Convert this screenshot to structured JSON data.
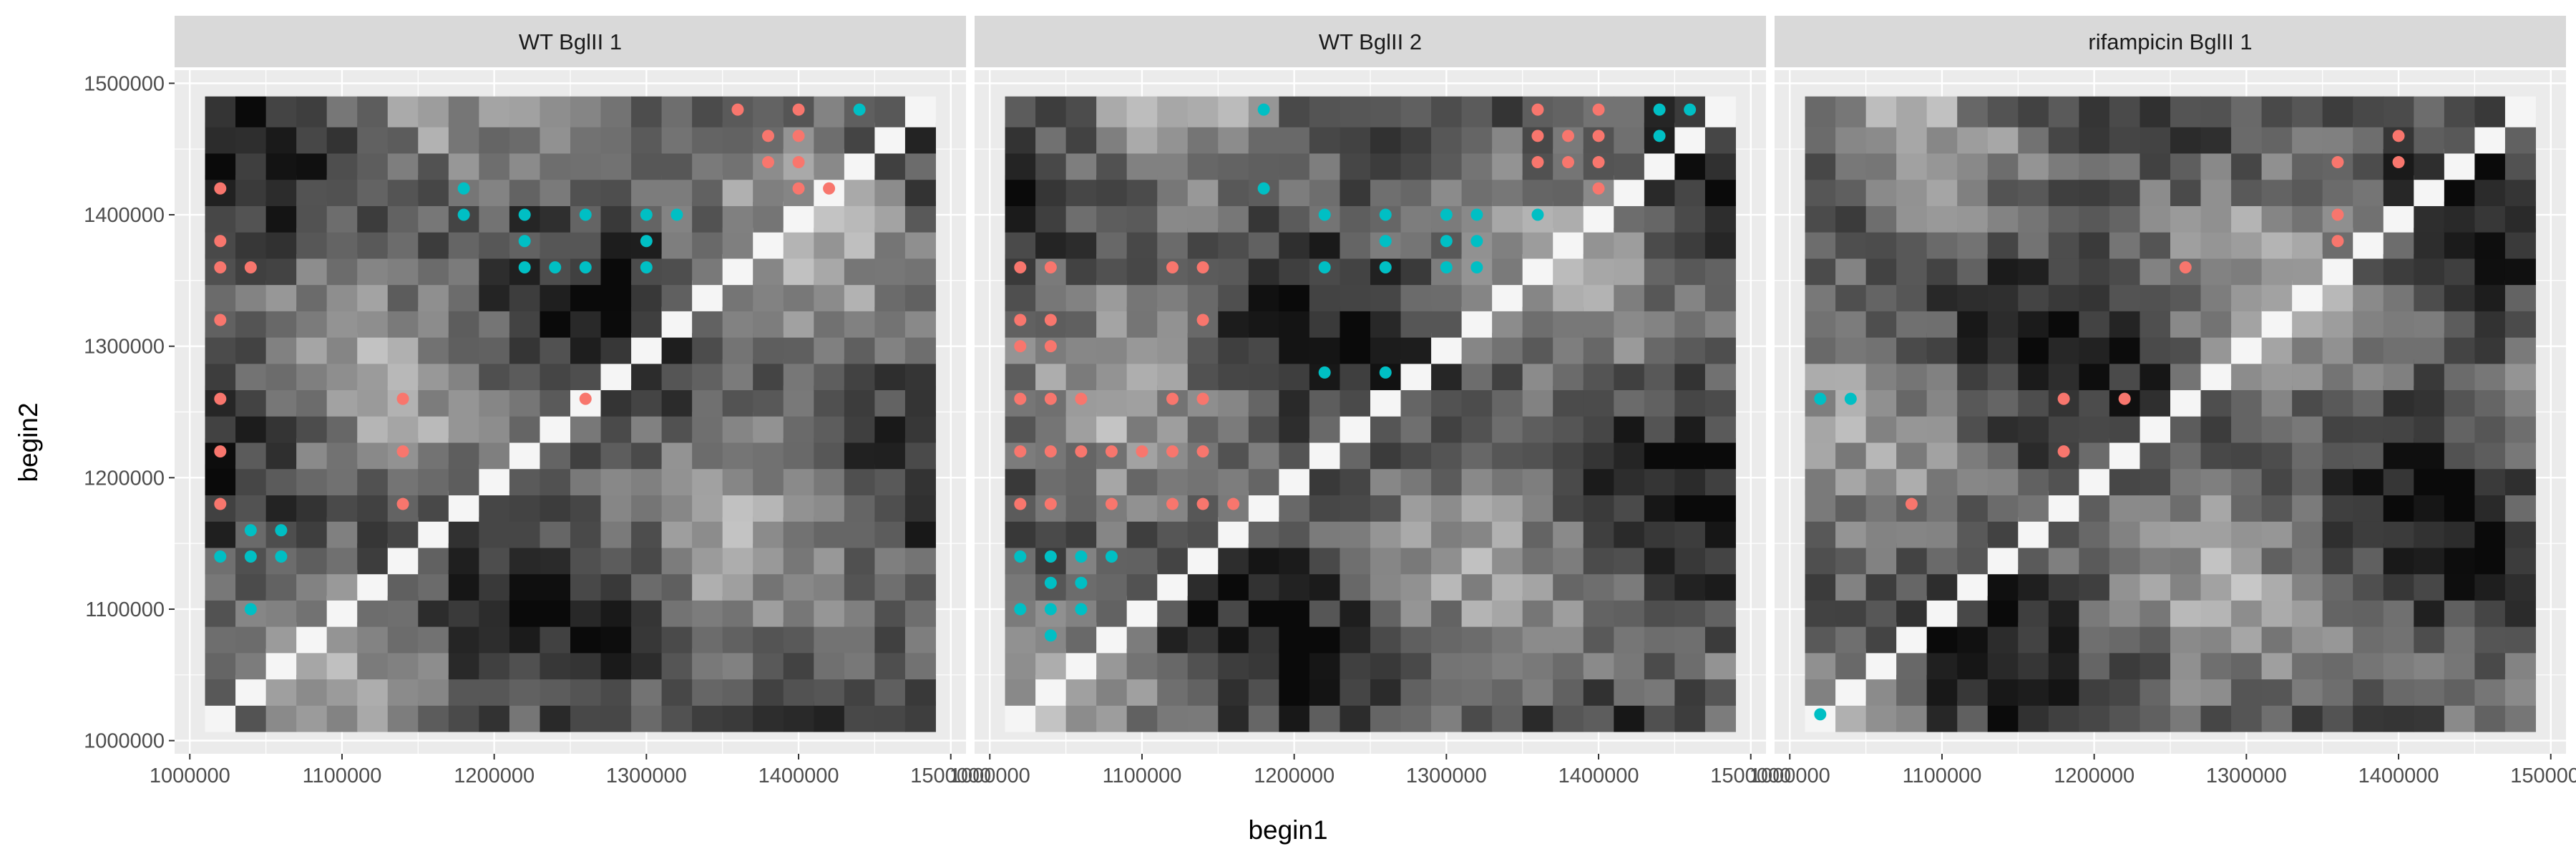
{
  "chart_data": {
    "type": "heatmap",
    "title": "",
    "xlabel": "begin1",
    "ylabel": "begin2",
    "xlim": [
      990000,
      1510000
    ],
    "ylim": [
      990000,
      1510000
    ],
    "x_ticks": [
      1000000,
      1100000,
      1200000,
      1300000,
      1400000,
      1500000
    ],
    "y_ticks": [
      1000000,
      1100000,
      1200000,
      1300000,
      1400000,
      1500000
    ],
    "x_tick_labels": [
      "1000000",
      "1100000",
      "1200000",
      "1300000",
      "1400000",
      "1500000"
    ],
    "y_tick_labels": [
      "1000000",
      "1100000",
      "1200000",
      "1300000",
      "1400000",
      "1500000"
    ],
    "grid": true,
    "legend": "none",
    "bin_size": 20000,
    "bin_start": 1020000,
    "bin_count": 24,
    "colors": {
      "panel_bg": "#ebebeb",
      "grid_line": "#ffffff",
      "strip_bg": "#d9d9d9",
      "point_red": "#f8766d",
      "point_cyan": "#00bfc4"
    },
    "panels": [
      {
        "name": "WT BglII 1",
        "seed": 11,
        "red_points": [
          [
            1020000,
            1420000
          ],
          [
            1020000,
            1380000
          ],
          [
            1020000,
            1360000
          ],
          [
            1040000,
            1360000
          ],
          [
            1020000,
            1320000
          ],
          [
            1020000,
            1260000
          ],
          [
            1140000,
            1260000
          ],
          [
            1260000,
            1260000
          ],
          [
            1020000,
            1220000
          ],
          [
            1140000,
            1220000
          ],
          [
            1020000,
            1180000
          ],
          [
            1140000,
            1180000
          ],
          [
            1360000,
            1480000
          ],
          [
            1400000,
            1480000
          ],
          [
            1380000,
            1460000
          ],
          [
            1400000,
            1460000
          ],
          [
            1380000,
            1440000
          ],
          [
            1400000,
            1440000
          ],
          [
            1400000,
            1420000
          ],
          [
            1420000,
            1420000
          ]
        ],
        "cyan_points": [
          [
            1180000,
            1420000
          ],
          [
            1180000,
            1400000
          ],
          [
            1220000,
            1400000
          ],
          [
            1260000,
            1400000
          ],
          [
            1300000,
            1400000
          ],
          [
            1320000,
            1400000
          ],
          [
            1220000,
            1380000
          ],
          [
            1300000,
            1380000
          ],
          [
            1220000,
            1360000
          ],
          [
            1240000,
            1360000
          ],
          [
            1260000,
            1360000
          ],
          [
            1300000,
            1360000
          ],
          [
            1440000,
            1480000
          ],
          [
            1040000,
            1160000
          ],
          [
            1060000,
            1160000
          ],
          [
            1020000,
            1140000
          ],
          [
            1040000,
            1140000
          ],
          [
            1060000,
            1140000
          ],
          [
            1040000,
            1100000
          ]
        ]
      },
      {
        "name": "WT BglII 2",
        "seed": 23,
        "red_points": [
          [
            1360000,
            1480000
          ],
          [
            1400000,
            1480000
          ],
          [
            1360000,
            1460000
          ],
          [
            1380000,
            1460000
          ],
          [
            1400000,
            1460000
          ],
          [
            1360000,
            1440000
          ],
          [
            1380000,
            1440000
          ],
          [
            1400000,
            1440000
          ],
          [
            1400000,
            1420000
          ],
          [
            1020000,
            1360000
          ],
          [
            1040000,
            1360000
          ],
          [
            1120000,
            1360000
          ],
          [
            1140000,
            1360000
          ],
          [
            1140000,
            1320000
          ],
          [
            1020000,
            1320000
          ],
          [
            1040000,
            1320000
          ],
          [
            1020000,
            1300000
          ],
          [
            1040000,
            1300000
          ],
          [
            1020000,
            1260000
          ],
          [
            1040000,
            1260000
          ],
          [
            1060000,
            1260000
          ],
          [
            1120000,
            1260000
          ],
          [
            1140000,
            1260000
          ],
          [
            1020000,
            1220000
          ],
          [
            1040000,
            1220000
          ],
          [
            1060000,
            1220000
          ],
          [
            1080000,
            1220000
          ],
          [
            1100000,
            1220000
          ],
          [
            1120000,
            1220000
          ],
          [
            1140000,
            1220000
          ],
          [
            1020000,
            1180000
          ],
          [
            1040000,
            1180000
          ],
          [
            1080000,
            1180000
          ],
          [
            1120000,
            1180000
          ],
          [
            1140000,
            1180000
          ],
          [
            1160000,
            1180000
          ]
        ],
        "cyan_points": [
          [
            1180000,
            1480000
          ],
          [
            1440000,
            1480000
          ],
          [
            1460000,
            1480000
          ],
          [
            1440000,
            1460000
          ],
          [
            1180000,
            1420000
          ],
          [
            1220000,
            1400000
          ],
          [
            1260000,
            1400000
          ],
          [
            1300000,
            1400000
          ],
          [
            1320000,
            1400000
          ],
          [
            1360000,
            1400000
          ],
          [
            1260000,
            1380000
          ],
          [
            1300000,
            1380000
          ],
          [
            1320000,
            1380000
          ],
          [
            1220000,
            1360000
          ],
          [
            1260000,
            1360000
          ],
          [
            1300000,
            1360000
          ],
          [
            1320000,
            1360000
          ],
          [
            1220000,
            1280000
          ],
          [
            1260000,
            1280000
          ],
          [
            1020000,
            1140000
          ],
          [
            1040000,
            1140000
          ],
          [
            1060000,
            1140000
          ],
          [
            1080000,
            1140000
          ],
          [
            1040000,
            1120000
          ],
          [
            1060000,
            1120000
          ],
          [
            1020000,
            1100000
          ],
          [
            1040000,
            1100000
          ],
          [
            1060000,
            1100000
          ],
          [
            1040000,
            1080000
          ]
        ]
      },
      {
        "name": "rifampicin BglII 1",
        "seed": 37,
        "red_points": [
          [
            1360000,
            1440000
          ],
          [
            1400000,
            1460000
          ],
          [
            1400000,
            1440000
          ],
          [
            1360000,
            1400000
          ],
          [
            1360000,
            1380000
          ],
          [
            1260000,
            1360000
          ],
          [
            1180000,
            1260000
          ],
          [
            1220000,
            1260000
          ],
          [
            1180000,
            1220000
          ],
          [
            1080000,
            1180000
          ]
        ],
        "cyan_points": [
          [
            1020000,
            1260000
          ],
          [
            1040000,
            1260000
          ],
          [
            1020000,
            1020000
          ]
        ]
      }
    ]
  }
}
